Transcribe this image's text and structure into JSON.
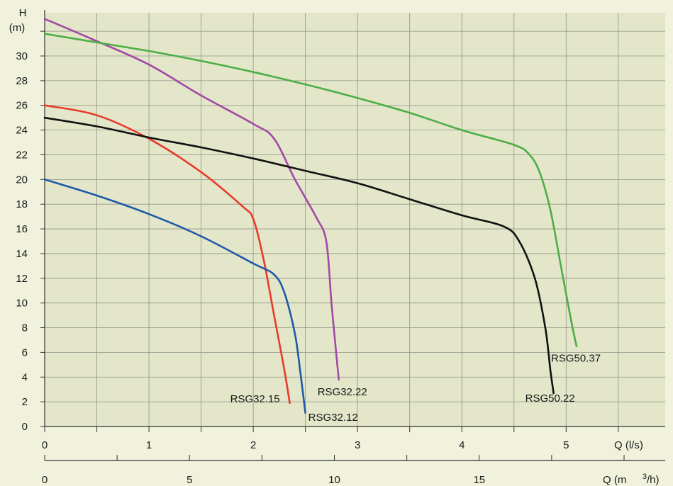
{
  "chart_data": {
    "type": "line",
    "ylabel_top": "H",
    "ylabel_unit": "(m)",
    "xlabel": "Q (l/s)",
    "xlabel2": "Q (m",
    "xlabel2_sup": "3",
    "xlabel2_end": "/h)",
    "ylim": [
      0,
      33.5
    ],
    "xlim": [
      0,
      5.95
    ],
    "x2lim": [
      0,
      21.42
    ],
    "yticks": [
      0,
      2,
      4,
      6,
      8,
      10,
      12,
      14,
      16,
      18,
      20,
      22,
      24,
      26,
      28,
      30
    ],
    "xticks": [
      0,
      1,
      2,
      3,
      4,
      5
    ],
    "x2ticks": [
      0,
      5,
      10,
      15
    ],
    "grid": true,
    "plot_bg": "#e3e6c9",
    "grid_color": "#8f9488",
    "series": [
      {
        "name": "RSG32.15",
        "color": "#e83b2b",
        "points": [
          [
            0,
            26
          ],
          [
            0.5,
            25.2
          ],
          [
            1.0,
            23.3
          ],
          [
            1.5,
            20.6
          ],
          [
            1.9,
            17.8
          ],
          [
            2.0,
            16.8
          ],
          [
            2.1,
            13.5
          ],
          [
            2.2,
            9.0
          ],
          [
            2.3,
            4.5
          ],
          [
            2.35,
            1.9
          ]
        ]
      },
      {
        "name": "RSG32.12",
        "color": "#1f5aa8",
        "points": [
          [
            0,
            20
          ],
          [
            0.5,
            18.7
          ],
          [
            1.0,
            17.2
          ],
          [
            1.5,
            15.4
          ],
          [
            2.0,
            13.2
          ],
          [
            2.2,
            12.3
          ],
          [
            2.3,
            10.8
          ],
          [
            2.4,
            7.5
          ],
          [
            2.45,
            4.5
          ],
          [
            2.5,
            1.1
          ]
        ]
      },
      {
        "name": "RSG32.22",
        "color": "#a24aa6",
        "points": [
          [
            0,
            33
          ],
          [
            0.5,
            31.2
          ],
          [
            1.0,
            29.3
          ],
          [
            1.5,
            26.8
          ],
          [
            2.0,
            24.5
          ],
          [
            2.2,
            23.3
          ],
          [
            2.4,
            20.0
          ],
          [
            2.6,
            17.0
          ],
          [
            2.7,
            15.0
          ],
          [
            2.75,
            10.0
          ],
          [
            2.8,
            5.5
          ],
          [
            2.82,
            3.8
          ]
        ]
      },
      {
        "name": "RSG50.22",
        "color": "#111111",
        "points": [
          [
            0,
            25
          ],
          [
            0.5,
            24.3
          ],
          [
            1.0,
            23.4
          ],
          [
            1.5,
            22.6
          ],
          [
            2.0,
            21.7
          ],
          [
            2.5,
            20.7
          ],
          [
            3.0,
            19.7
          ],
          [
            3.5,
            18.4
          ],
          [
            4.0,
            17.1
          ],
          [
            4.4,
            16.2
          ],
          [
            4.55,
            15.0
          ],
          [
            4.7,
            12.0
          ],
          [
            4.8,
            8.0
          ],
          [
            4.85,
            4.5
          ],
          [
            4.88,
            2.7
          ]
        ]
      },
      {
        "name": "RSG50.37",
        "color": "#4cae45",
        "points": [
          [
            0,
            31.8
          ],
          [
            0.5,
            31.1
          ],
          [
            1.0,
            30.4
          ],
          [
            1.5,
            29.6
          ],
          [
            2.0,
            28.7
          ],
          [
            2.5,
            27.7
          ],
          [
            3.0,
            26.6
          ],
          [
            3.5,
            25.4
          ],
          [
            4.0,
            24.0
          ],
          [
            4.5,
            22.8
          ],
          [
            4.65,
            22.0
          ],
          [
            4.75,
            20.5
          ],
          [
            4.85,
            17.5
          ],
          [
            4.95,
            13.0
          ],
          [
            5.05,
            8.5
          ],
          [
            5.1,
            6.5
          ]
        ]
      }
    ]
  }
}
